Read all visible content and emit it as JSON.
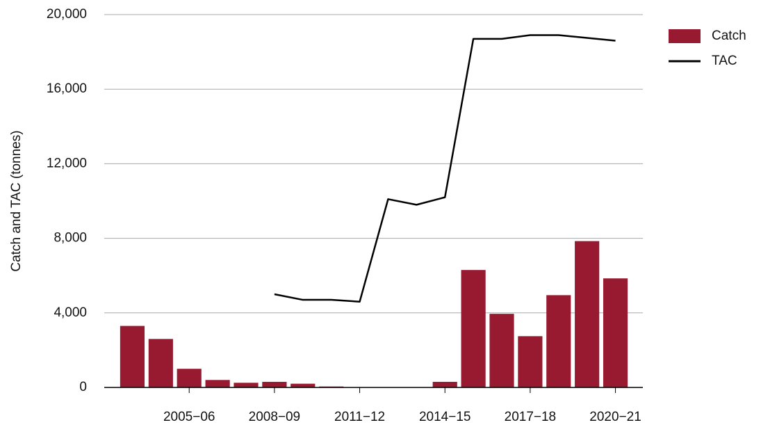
{
  "chart_data": {
    "type": "bar+line",
    "y_label": "Catch and TAC (tonnes)",
    "categories": [
      null,
      null,
      "2005−06",
      null,
      null,
      "2008−09",
      null,
      null,
      "2011−12",
      null,
      null,
      "2014−15",
      null,
      null,
      "2017−18",
      null,
      null,
      "2020−21"
    ],
    "series": [
      {
        "name": "Catch",
        "type": "bar",
        "color": "#981a31",
        "values": [
          3300,
          2600,
          1000,
          400,
          250,
          300,
          200,
          50,
          0,
          0,
          0,
          300,
          6300,
          3950,
          2750,
          4950,
          7850,
          5850
        ]
      },
      {
        "name": "TAC",
        "type": "line",
        "color": "#000000",
        "values": [
          null,
          null,
          null,
          null,
          null,
          5000,
          4700,
          4700,
          4600,
          10100,
          9800,
          10200,
          18700,
          18700,
          18900,
          18900,
          18750,
          18600
        ]
      }
    ],
    "ylim": [
      0,
      20000
    ],
    "yticks": [
      0,
      {
        "value": 4000,
        "label": "4,000"
      },
      {
        "value": 8000,
        "label": "8,000"
      },
      {
        "value": 12000,
        "label": "12,000"
      },
      {
        "value": 16000,
        "label": "16,000"
      },
      {
        "value": 20000,
        "label": "20,000"
      }
    ],
    "grid": true,
    "legend": "top-right"
  }
}
